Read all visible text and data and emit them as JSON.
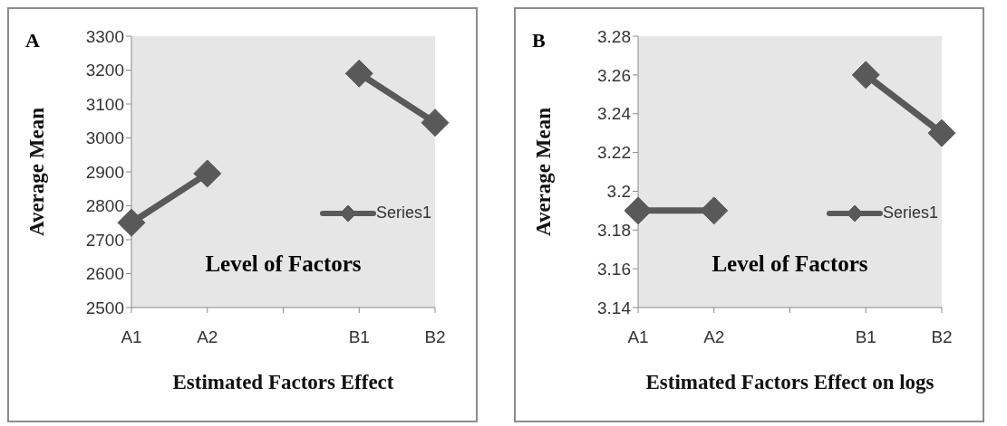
{
  "chart_data": [
    {
      "type": "line",
      "xlabel": "Estimated Factors Effect",
      "ylabel": "Average Mean",
      "categories": [
        "A1",
        "A2",
        null,
        "B1",
        "B2"
      ],
      "series": [
        {
          "name": "Series1",
          "color": "#595959",
          "values": [
            2750,
            2895,
            null,
            3190,
            3045
          ]
        }
      ],
      "ylim": [
        2500,
        3300
      ],
      "yticks": [
        2500,
        2600,
        2700,
        2800,
        2900,
        3000,
        3100,
        3200,
        3300
      ],
      "grid": false,
      "legend": "right",
      "marker": "diamond",
      "line_style": "solid",
      "annotations": [
        "A",
        "Level of Factors"
      ]
    },
    {
      "type": "line",
      "xlabel": "Estimated Factors Effect on logs",
      "ylabel": "Average Mean",
      "categories": [
        "A1",
        "A2",
        null,
        "B1",
        "B2"
      ],
      "series": [
        {
          "name": "Series1",
          "color": "#595959",
          "values": [
            3.19,
            3.19,
            null,
            3.26,
            3.23
          ]
        }
      ],
      "ylim": [
        3.14,
        3.28
      ],
      "yticks": [
        3.14,
        3.16,
        3.18,
        3.2,
        3.22,
        3.24,
        3.26,
        3.28
      ],
      "grid": false,
      "legend": "right",
      "marker": "diamond",
      "line_style": "solid",
      "annotations": [
        "B",
        "Level of Factors"
      ]
    }
  ]
}
